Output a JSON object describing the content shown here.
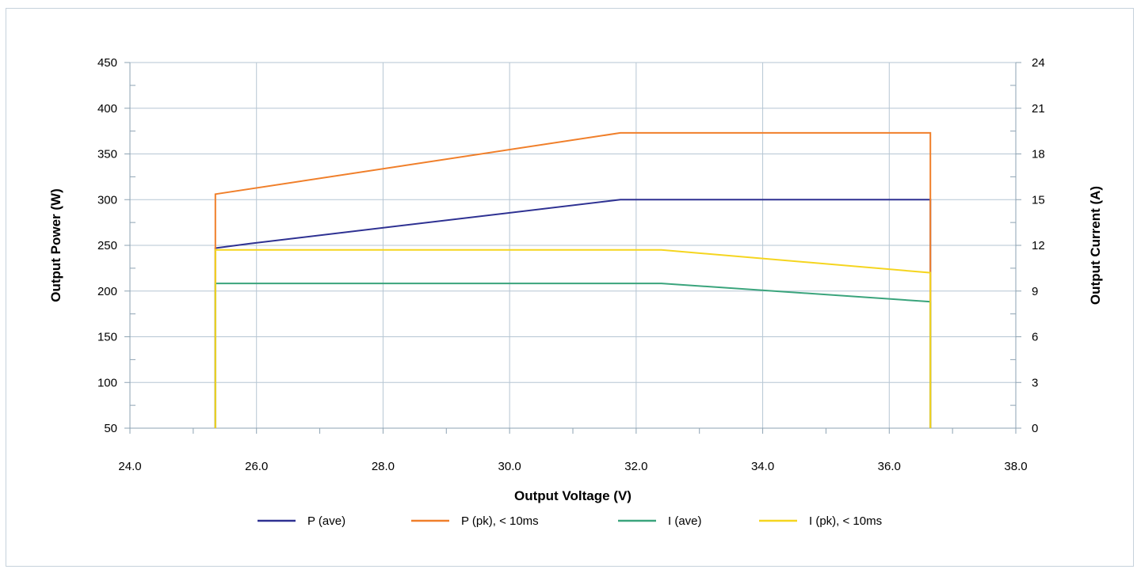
{
  "chart_data": {
    "type": "line",
    "title": "",
    "xlabel": "Output Voltage (V)",
    "ylabel": "Output Power (W)",
    "y2label": "Output Current (A)",
    "xlim": [
      24.0,
      38.0
    ],
    "ylim": [
      50,
      450
    ],
    "y2lim": [
      0,
      24
    ],
    "x_ticks": [
      "24.0",
      "26.0",
      "28.0",
      "30.0",
      "32.0",
      "34.0",
      "36.0",
      "38.0"
    ],
    "y_ticks": [
      "50",
      "100",
      "150",
      "200",
      "250",
      "300",
      "350",
      "400",
      "450"
    ],
    "y2_ticks": [
      "0",
      "3",
      "6",
      "9",
      "12",
      "15",
      "18",
      "21",
      "24"
    ],
    "grid": true,
    "legend_position": "bottom",
    "series": [
      {
        "name": "P (ave)",
        "axis": "left",
        "color": "#2e3192",
        "points": [
          [
            25.35,
            50
          ],
          [
            25.35,
            247
          ],
          [
            25.9,
            252
          ],
          [
            31.75,
            300
          ],
          [
            36.65,
            300
          ],
          [
            36.65,
            50
          ]
        ]
      },
      {
        "name": "P (pk), < 10ms",
        "axis": "left",
        "color": "#f07f2a",
        "points": [
          [
            25.35,
            50
          ],
          [
            25.35,
            306
          ],
          [
            31.75,
            373
          ],
          [
            36.65,
            373
          ],
          [
            36.65,
            50
          ]
        ]
      },
      {
        "name": "I (ave)",
        "axis": "right",
        "color": "#3aa47c",
        "points": [
          [
            25.35,
            0
          ],
          [
            25.35,
            9.5
          ],
          [
            32.4,
            9.5
          ],
          [
            36.65,
            8.3
          ],
          [
            36.65,
            0
          ]
        ]
      },
      {
        "name": "I (pk), < 10ms",
        "axis": "right",
        "color": "#f5d51f",
        "points": [
          [
            25.35,
            0
          ],
          [
            25.35,
            11.7
          ],
          [
            32.4,
            11.7
          ],
          [
            36.65,
            10.2
          ],
          [
            36.65,
            0
          ]
        ]
      }
    ]
  }
}
